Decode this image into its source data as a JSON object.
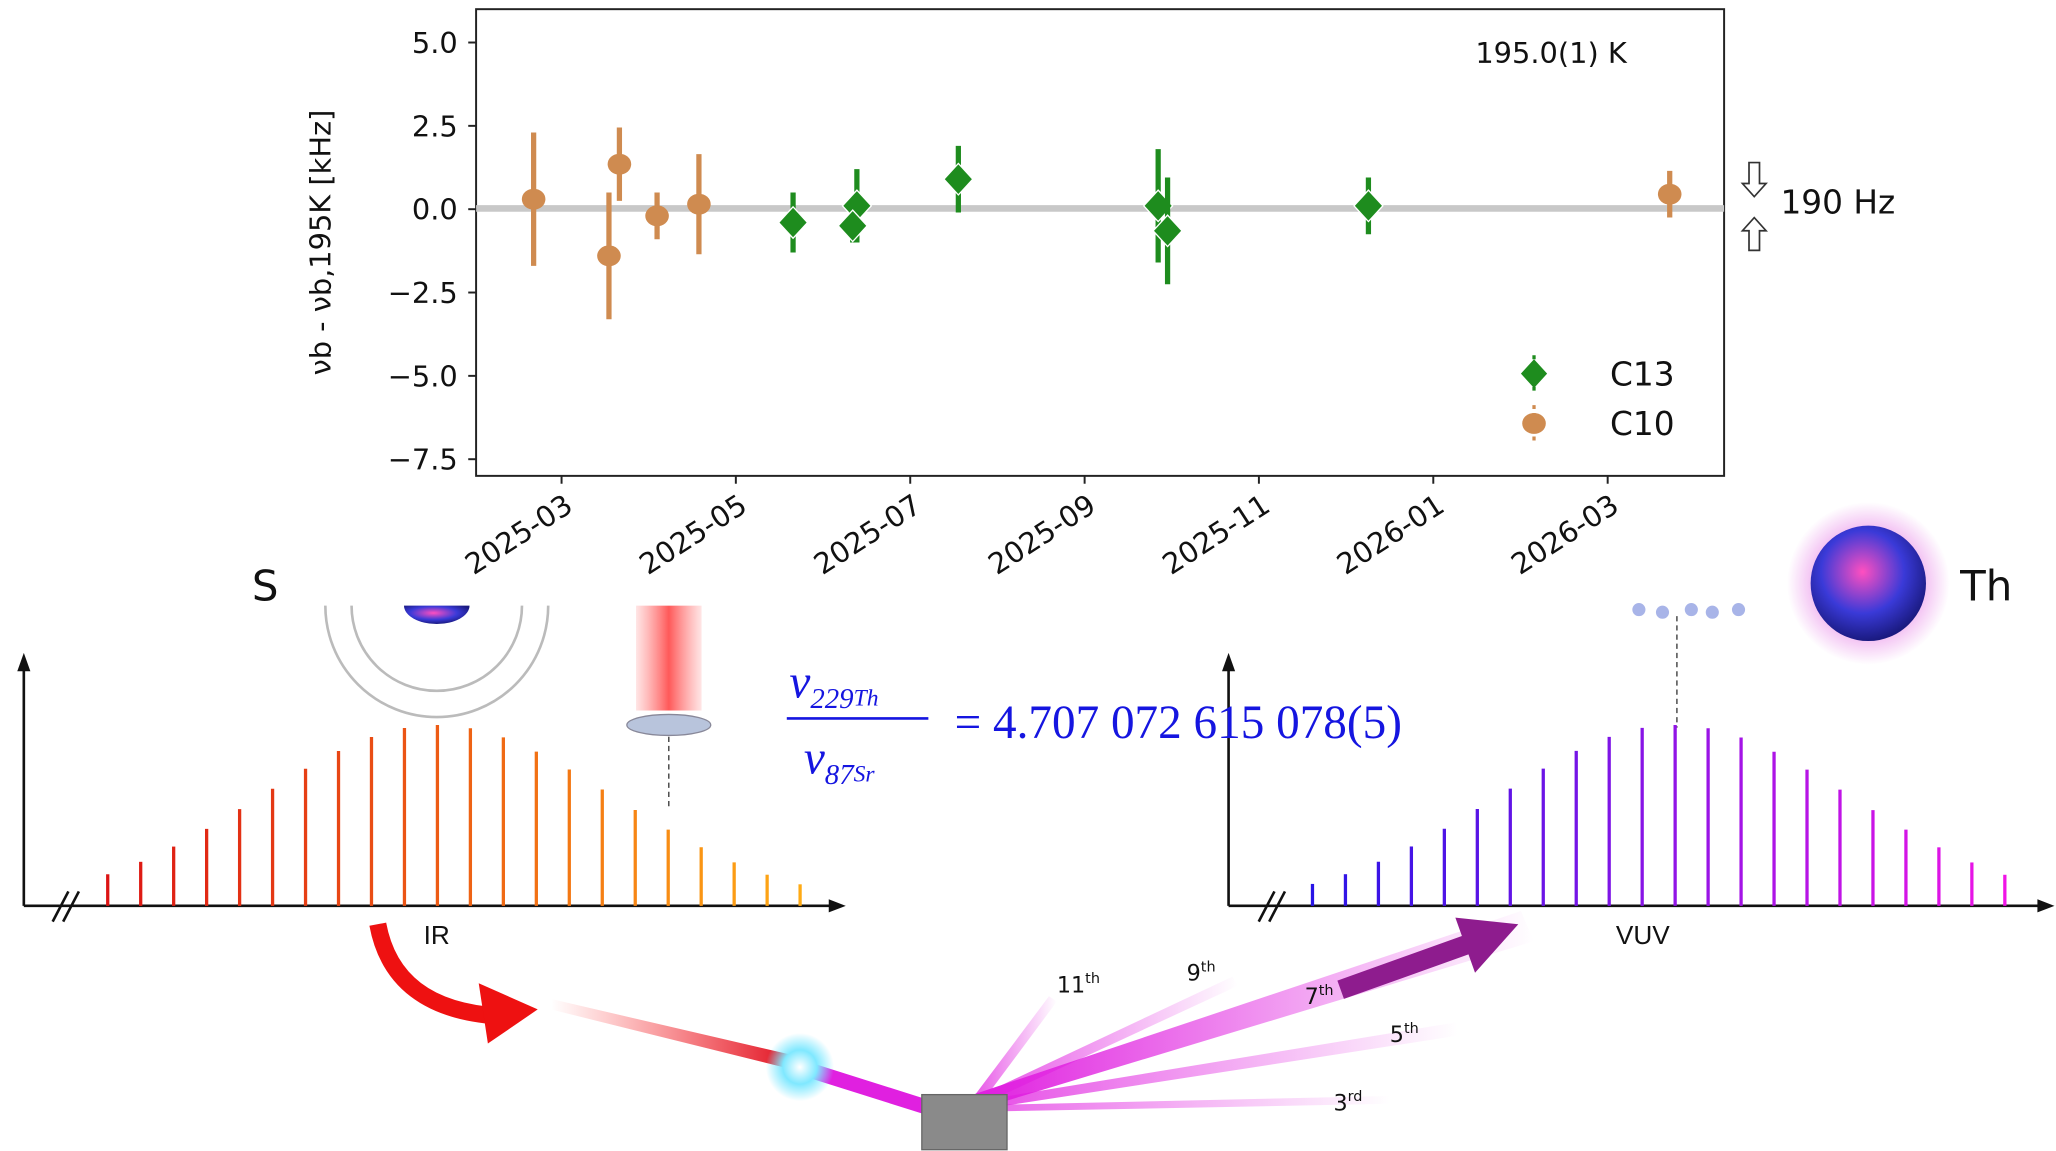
{
  "chart_data": {
    "type": "scatter",
    "annotation": "195.0(1) K",
    "y_label": "νb - νb,195K [kHz]",
    "side_note": "190 Hz",
    "xlim": [
      2025.085,
      2026.278
    ],
    "xticks": [
      {
        "value": 2025.1667,
        "label": "2025-03"
      },
      {
        "value": 2025.3333,
        "label": "2025-05"
      },
      {
        "value": 2025.5,
        "label": "2025-07"
      },
      {
        "value": 2025.6667,
        "label": "2025-09"
      },
      {
        "value": 2025.8333,
        "label": "2025-11"
      },
      {
        "value": 2026.0,
        "label": "2026-01"
      },
      {
        "value": 2026.1667,
        "label": "2026-03"
      }
    ],
    "ylim": [
      -8.0,
      6.0
    ],
    "yticks": [
      {
        "value": -7.5,
        "label": "−7.5"
      },
      {
        "value": -5.0,
        "label": "−5.0"
      },
      {
        "value": -2.5,
        "label": "−2.5"
      },
      {
        "value": 0,
        "label": "0.0"
      },
      {
        "value": 2.5,
        "label": "2.5"
      },
      {
        "value": 5.0,
        "label": "5.0"
      }
    ],
    "legend": "lower right",
    "series": [
      {
        "name": "C13",
        "color": "#1e8c1e",
        "marker": "diamond",
        "x": [
          2025.388,
          2025.449,
          2025.445,
          2025.546,
          2025.737,
          2025.746,
          2025.938
        ],
        "values": [
          -0.4,
          0.1,
          -0.5,
          0.9,
          0.1,
          -0.65,
          0.1
        ],
        "errors": [
          0.9,
          1.1,
          0.5,
          1.0,
          1.7,
          1.6,
          0.85
        ]
      },
      {
        "name": "C10",
        "color": "#cf8b50",
        "marker": "circle",
        "x": [
          2025.14,
          2025.212,
          2025.222,
          2025.258,
          2025.298,
          2026.226
        ],
        "values": [
          0.3,
          -1.4,
          1.35,
          -0.2,
          0.15,
          0.45
        ],
        "errors": [
          2.0,
          1.9,
          1.1,
          0.7,
          1.5,
          0.7
        ]
      }
    ]
  },
  "diagram": {
    "left_label": "S",
    "right_label": "Th",
    "left_axis": "IR",
    "right_axis": "VUV",
    "ratio": {
      "num_symbol": "ν",
      "num_mass": "229",
      "num_element": "Th",
      "den_symbol": "ν",
      "den_mass": "87",
      "den_element": "Sr",
      "value": "= 4.707 072 615 078(5)"
    },
    "harmonics": [
      {
        "n": "11",
        "suffix": "th"
      },
      {
        "n": "9",
        "suffix": "th"
      },
      {
        "n": "7",
        "suffix": "th"
      },
      {
        "n": "5",
        "suffix": "th"
      },
      {
        "n": "3",
        "suffix": "rd"
      }
    ]
  }
}
